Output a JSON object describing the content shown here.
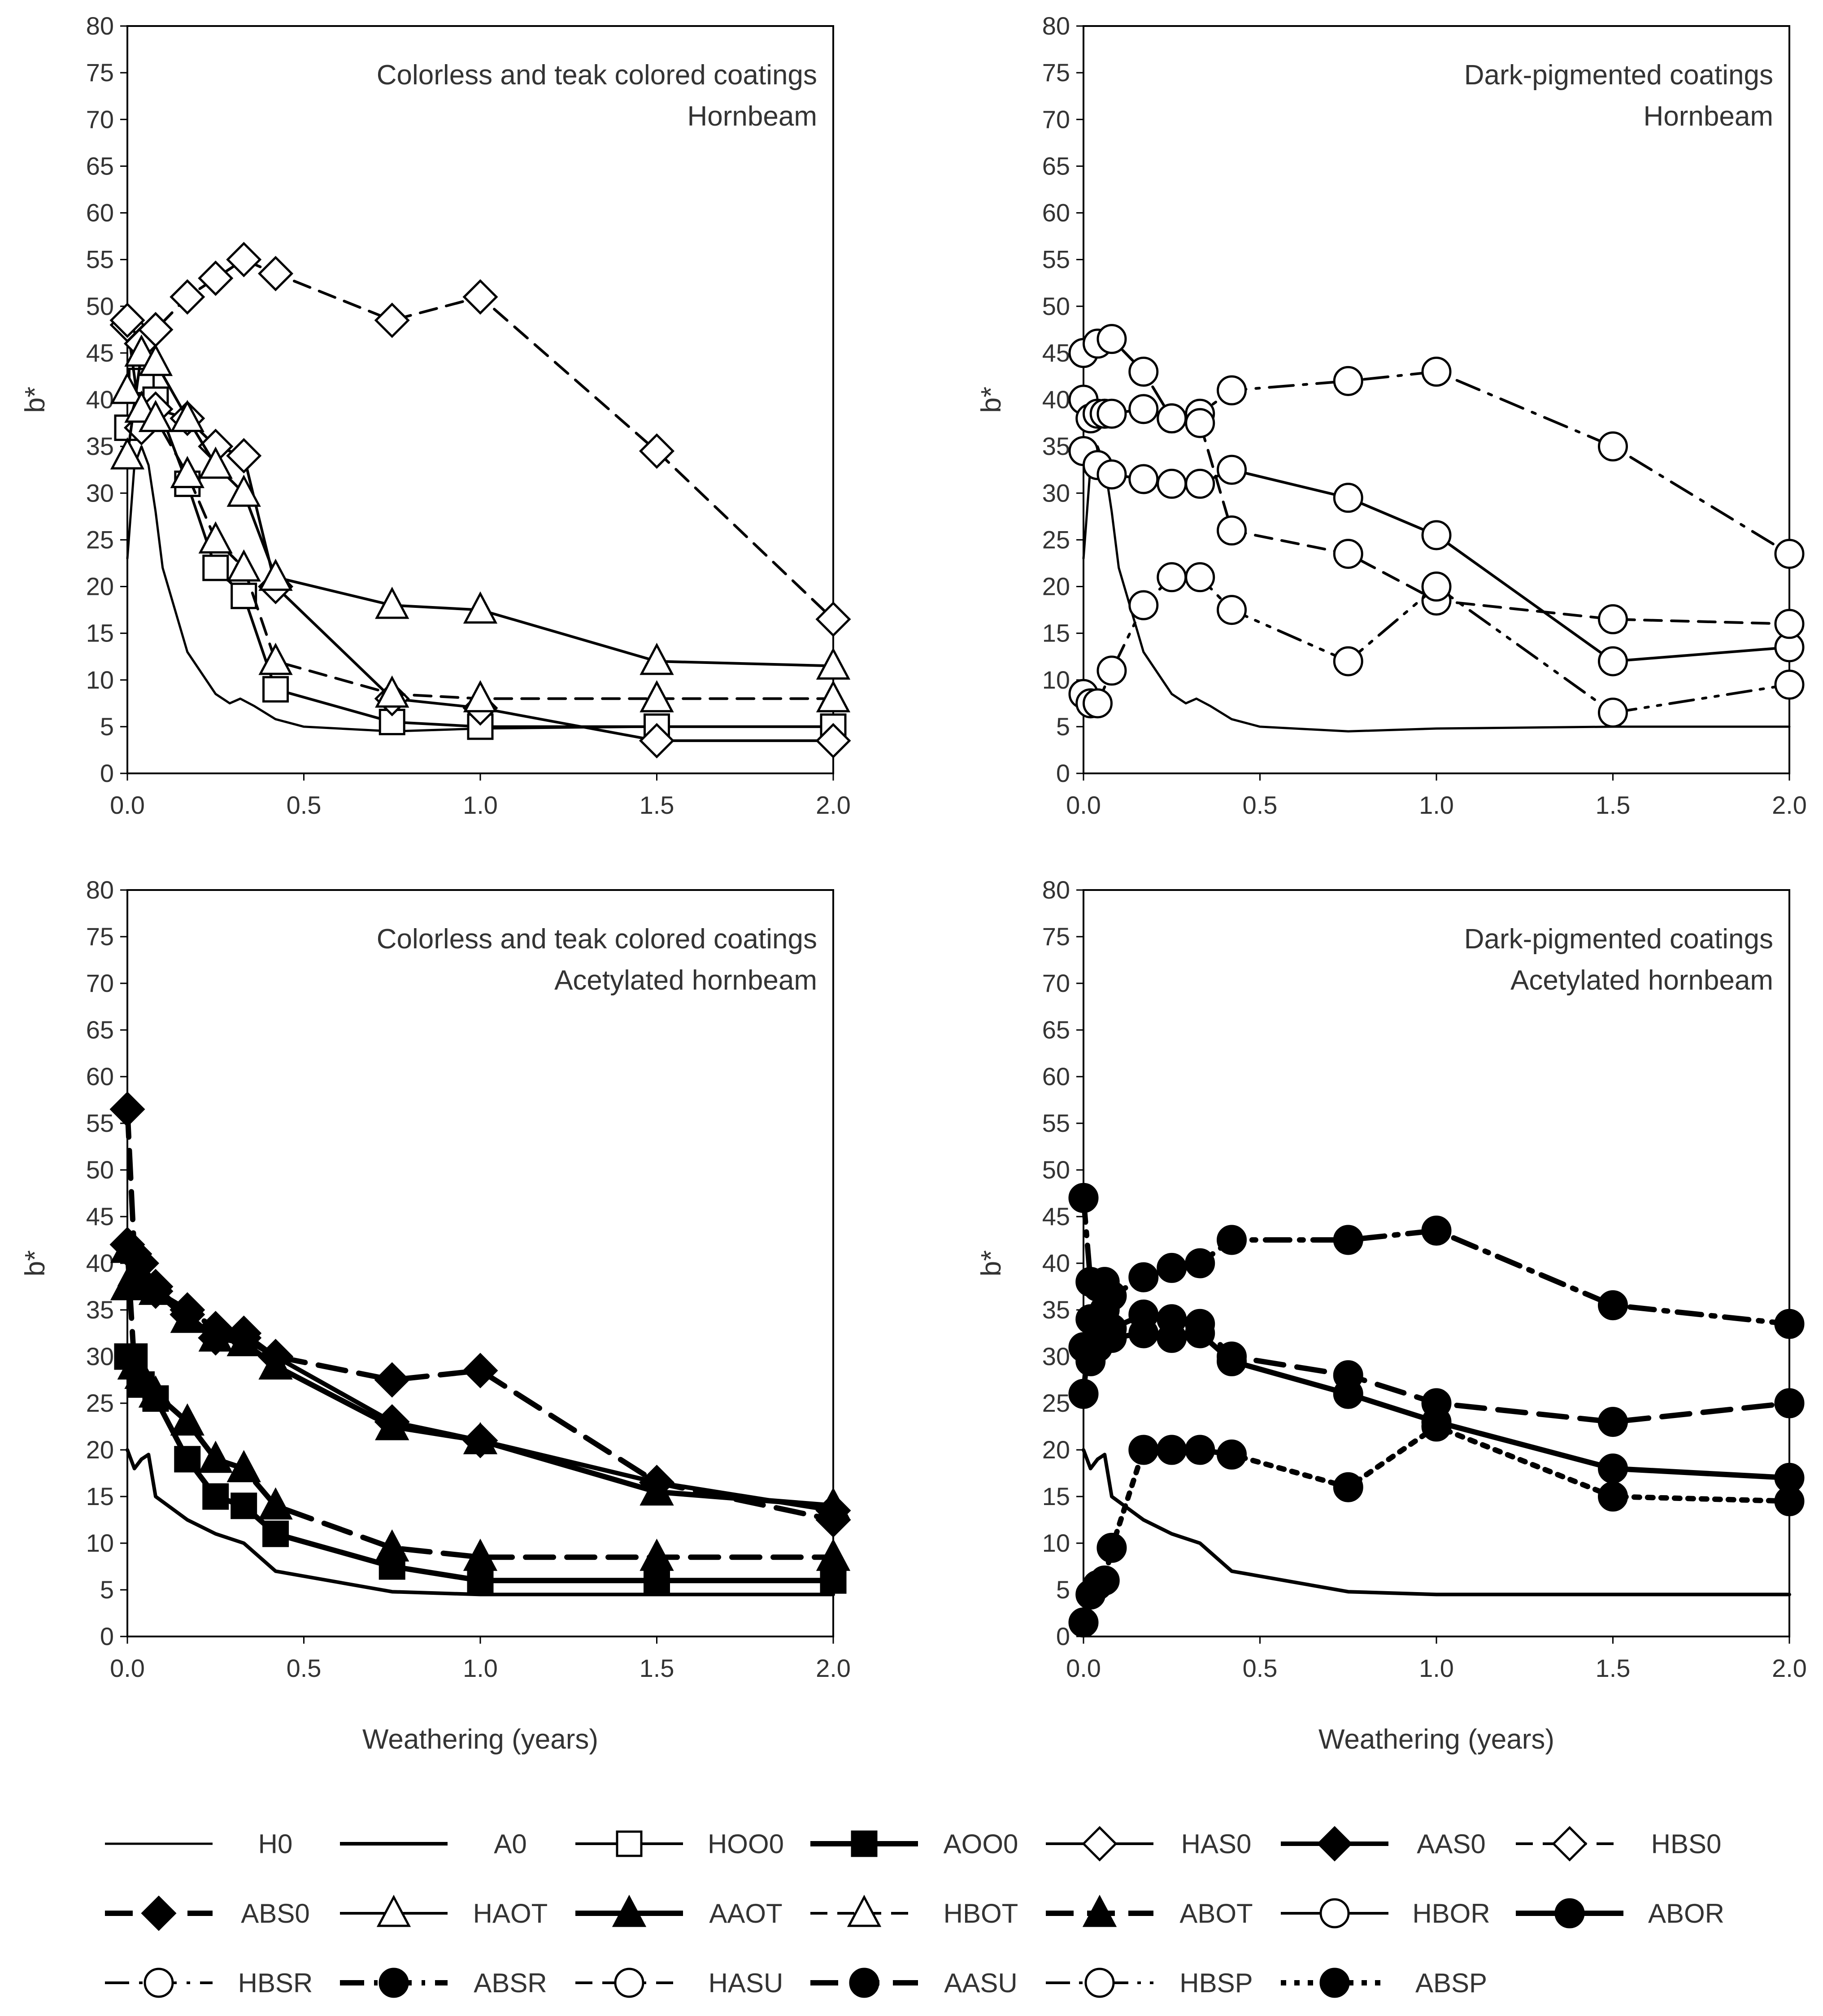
{
  "chart_data": [
    {
      "type": "line",
      "title": "",
      "annotation": [
        "Colorless and teak colored coatings",
        "Hornbeam"
      ],
      "xlabel": "",
      "ylabel": "b*",
      "xlim": [
        0,
        2
      ],
      "ylim": [
        0,
        80
      ],
      "xticks": [
        "0.0",
        "0.5",
        "1.0",
        "1.5",
        "2.0"
      ],
      "yticks": [
        "0",
        "5",
        "10",
        "15",
        "20",
        "25",
        "30",
        "35",
        "40",
        "45",
        "50",
        "55",
        "60",
        "65",
        "70",
        "75",
        "80"
      ],
      "grid": false,
      "series": [
        {
          "name": "H0",
          "x": [
            0,
            0.02,
            0.04,
            0.06,
            0.08,
            0.1,
            0.17,
            0.25,
            0.29,
            0.32,
            0.36,
            0.42,
            0.5,
            0.75,
            1.0,
            1.5,
            2.0
          ],
          "y": [
            23,
            33,
            35,
            33,
            28,
            22,
            13,
            8.5,
            7.5,
            8,
            7.2,
            5.8,
            5,
            4.5,
            4.8,
            5,
            5
          ]
        },
        {
          "name": "HOO0",
          "x": [
            0,
            0.04,
            0.08,
            0.17,
            0.25,
            0.33,
            0.42,
            0.75,
            1.0,
            1.5,
            2.0
          ],
          "y": [
            37,
            42,
            40,
            31,
            22,
            19,
            9,
            5.5,
            5,
            5,
            5
          ]
        },
        {
          "name": "HAS0",
          "x": [
            0,
            0.04,
            0.08,
            0.17,
            0.25,
            0.33,
            0.42,
            0.75,
            1.0,
            1.5,
            2.0
          ],
          "y": [
            48,
            37,
            39,
            38,
            35,
            34,
            20,
            8,
            7,
            3.5,
            3.5
          ]
        },
        {
          "name": "HBS0",
          "x": [
            0,
            0.04,
            0.08,
            0.17,
            0.25,
            0.33,
            0.42,
            0.75,
            1.0,
            1.5,
            2.0
          ],
          "y": [
            48.5,
            46,
            47.5,
            51,
            53,
            55,
            53.5,
            48.5,
            51,
            34.5,
            16.5
          ]
        },
        {
          "name": "HAOT",
          "x": [
            0,
            0.04,
            0.08,
            0.17,
            0.25,
            0.33,
            0.42,
            0.75,
            1.0,
            1.5,
            2.0
          ],
          "y": [
            34,
            45,
            44,
            38,
            33,
            30,
            21,
            18,
            17.5,
            12,
            11.5
          ]
        },
        {
          "name": "HBOT",
          "x": [
            0,
            0.04,
            0.08,
            0.17,
            0.25,
            0.33,
            0.42,
            0.75,
            1.0,
            1.5,
            2.0
          ],
          "y": [
            41,
            39,
            38,
            32,
            25,
            22,
            12,
            8.5,
            8,
            8,
            8
          ]
        }
      ]
    },
    {
      "type": "line",
      "title": "",
      "annotation": [
        "Dark-pigmented coatings",
        "Hornbeam"
      ],
      "xlabel": "",
      "ylabel": "b*",
      "xlim": [
        0,
        2
      ],
      "ylim": [
        0,
        80
      ],
      "xticks": [
        "0.0",
        "0.5",
        "1.0",
        "1.5",
        "2.0"
      ],
      "yticks": [
        "0",
        "5",
        "10",
        "15",
        "20",
        "25",
        "30",
        "35",
        "40",
        "45",
        "50",
        "55",
        "60",
        "65",
        "70",
        "75",
        "80"
      ],
      "grid": false,
      "series": [
        {
          "name": "H0",
          "x": [
            0,
            0.02,
            0.04,
            0.06,
            0.08,
            0.1,
            0.17,
            0.25,
            0.29,
            0.32,
            0.36,
            0.42,
            0.5,
            0.75,
            1.0,
            1.5,
            2.0
          ],
          "y": [
            23,
            33,
            35,
            33,
            28,
            22,
            13,
            8.5,
            7.5,
            8,
            7.2,
            5.8,
            5,
            4.5,
            4.8,
            5,
            5
          ]
        },
        {
          "name": "HBOR",
          "x": [
            0,
            0.04,
            0.08,
            0.17,
            0.25,
            0.33,
            0.42,
            0.75,
            1.0,
            1.5,
            2.0
          ],
          "y": [
            34.5,
            33,
            32,
            31.5,
            31,
            31,
            32.5,
            29.5,
            25.5,
            12,
            13.5
          ]
        },
        {
          "name": "HBSR",
          "x": [
            0,
            0.04,
            0.08,
            0.17,
            0.25,
            0.33,
            0.42,
            0.75,
            1.0,
            1.5,
            2.0
          ],
          "y": [
            45,
            46,
            46.5,
            43,
            38,
            38.5,
            41,
            42,
            43,
            35,
            23.5
          ]
        },
        {
          "name": "HASU",
          "x": [
            0,
            0.02,
            0.04,
            0.06,
            0.08,
            0.17,
            0.25,
            0.33,
            0.42,
            0.75,
            1.0,
            1.5,
            2.0
          ],
          "y": [
            40,
            38,
            38.5,
            38.5,
            38.5,
            39,
            38,
            37.5,
            26,
            23.5,
            18.5,
            16.5,
            16
          ]
        },
        {
          "name": "HBSP",
          "x": [
            0,
            0.02,
            0.04,
            0.08,
            0.17,
            0.25,
            0.33,
            0.42,
            0.75,
            1.0,
            1.5,
            2.0
          ],
          "y": [
            8.5,
            7.5,
            7.5,
            11,
            18,
            21,
            21,
            17.5,
            12,
            20,
            6.5,
            9.5
          ]
        }
      ]
    },
    {
      "type": "line",
      "title": "",
      "annotation": [
        "Colorless and teak colored coatings",
        "Acetylated hornbeam"
      ],
      "xlabel": "Weathering (years)",
      "ylabel": "b*",
      "xlim": [
        0,
        2
      ],
      "ylim": [
        0,
        80
      ],
      "xticks": [
        "0.0",
        "0.5",
        "1.0",
        "1.5",
        "2.0"
      ],
      "yticks": [
        "0",
        "5",
        "10",
        "15",
        "20",
        "25",
        "30",
        "35",
        "40",
        "45",
        "50",
        "55",
        "60",
        "65",
        "70",
        "75",
        "80"
      ],
      "grid": false,
      "series": [
        {
          "name": "A0",
          "x": [
            0,
            0.02,
            0.04,
            0.06,
            0.08,
            0.17,
            0.25,
            0.33,
            0.42,
            0.75,
            1.0,
            1.5,
            2.0
          ],
          "y": [
            20,
            18,
            19,
            19.5,
            15,
            12.5,
            11,
            10,
            7,
            4.8,
            4.5,
            4.5,
            4.5
          ]
        },
        {
          "name": "AOO0",
          "x": [
            0,
            0.02,
            0.04,
            0.08,
            0.17,
            0.25,
            0.33,
            0.42,
            0.75,
            1.0,
            1.5,
            2.0
          ],
          "y": [
            30,
            30,
            27,
            25.5,
            19,
            15,
            14,
            11,
            7.5,
            6,
            6,
            6
          ]
        },
        {
          "name": "AAS0",
          "x": [
            0,
            0.02,
            0.04,
            0.08,
            0.17,
            0.25,
            0.33,
            0.42,
            0.75,
            1.0,
            1.5,
            2.0
          ],
          "y": [
            42,
            41,
            40,
            37.5,
            34.5,
            32,
            32.5,
            30,
            23,
            21,
            16.5,
            13.5
          ]
        },
        {
          "name": "ABS0",
          "x": [
            0,
            0.02,
            0.04,
            0.08,
            0.17,
            0.25,
            0.33,
            0.42,
            0.75,
            1.0,
            1.5,
            2.0
          ],
          "y": [
            56.5,
            41,
            38,
            37,
            35,
            33,
            32,
            30,
            27.5,
            28.5,
            16.5,
            12.5
          ]
        },
        {
          "name": "AAOT",
          "x": [
            0,
            0.02,
            0.04,
            0.08,
            0.17,
            0.25,
            0.33,
            0.42,
            0.75,
            1.0,
            1.5,
            2.0
          ],
          "y": [
            37.5,
            39,
            38.5,
            37,
            34,
            32,
            31.5,
            29,
            22.5,
            21,
            15.5,
            14
          ]
        },
        {
          "name": "ABOT",
          "x": [
            0,
            0.02,
            0.04,
            0.08,
            0.17,
            0.25,
            0.33,
            0.42,
            0.75,
            1.0,
            1.5,
            2.0
          ],
          "y": [
            41.5,
            29,
            28,
            26,
            23,
            19,
            18,
            14,
            9.5,
            8.5,
            8.5,
            8.5
          ]
        }
      ]
    },
    {
      "type": "line",
      "title": "",
      "annotation": [
        "Dark-pigmented coatings",
        "Acetylated hornbeam"
      ],
      "xlabel": "Weathering (years)",
      "ylabel": "b*",
      "xlim": [
        0,
        2
      ],
      "ylim": [
        0,
        80
      ],
      "xticks": [
        "0.0",
        "0.5",
        "1.0",
        "1.5",
        "2.0"
      ],
      "yticks": [
        "0",
        "5",
        "10",
        "15",
        "20",
        "25",
        "30",
        "35",
        "40",
        "45",
        "50",
        "55",
        "60",
        "65",
        "70",
        "75",
        "80"
      ],
      "grid": false,
      "series": [
        {
          "name": "A0",
          "x": [
            0,
            0.02,
            0.04,
            0.06,
            0.08,
            0.17,
            0.25,
            0.33,
            0.42,
            0.75,
            1.0,
            1.5,
            2.0
          ],
          "y": [
            20,
            18,
            19,
            19.5,
            15,
            12.5,
            11,
            10,
            7,
            4.8,
            4.5,
            4.5,
            4.5
          ]
        },
        {
          "name": "ABOR",
          "x": [
            0,
            0.02,
            0.04,
            0.06,
            0.08,
            0.17,
            0.25,
            0.33,
            0.42,
            0.75,
            1.0,
            1.5,
            2.0
          ],
          "y": [
            31,
            29.5,
            31,
            32,
            32,
            32.5,
            32,
            32.5,
            29.5,
            26,
            23,
            18,
            17
          ]
        },
        {
          "name": "ABSR",
          "x": [
            0,
            0.02,
            0.04,
            0.06,
            0.08,
            0.17,
            0.25,
            0.33,
            0.42,
            0.75,
            1.0,
            1.5,
            2.0
          ],
          "y": [
            47,
            38,
            37.5,
            38,
            36.5,
            38.5,
            39.5,
            40,
            42.5,
            42.5,
            43.5,
            35.5,
            33.5
          ]
        },
        {
          "name": "AASU",
          "x": [
            0,
            0.02,
            0.04,
            0.06,
            0.08,
            0.17,
            0.25,
            0.33,
            0.42,
            0.75,
            1.0,
            1.5,
            2.0
          ],
          "y": [
            26,
            34,
            33,
            35,
            33,
            34.5,
            34,
            33.5,
            30,
            28,
            25,
            23,
            25
          ]
        },
        {
          "name": "ABSP",
          "x": [
            0,
            0.02,
            0.04,
            0.06,
            0.08,
            0.17,
            0.25,
            0.33,
            0.42,
            0.75,
            1.0,
            1.5,
            2.0
          ],
          "y": [
            1.5,
            4.5,
            5.5,
            6,
            9.5,
            20,
            20,
            20,
            19.5,
            16,
            22.5,
            15,
            14.5
          ]
        }
      ]
    }
  ],
  "legend": {
    "rows": [
      [
        "H0",
        "A0",
        "HOO0",
        "AOO0",
        "HAS0",
        "AAS0",
        "HBS0"
      ],
      [
        "ABS0",
        "HAOT",
        "AAOT",
        "HBOT",
        "ABOT",
        "HBOR",
        "ABOR"
      ],
      [
        "HBSR",
        "ABSR",
        "HASU",
        "AASU",
        "HBSP",
        "ABSP"
      ]
    ]
  }
}
